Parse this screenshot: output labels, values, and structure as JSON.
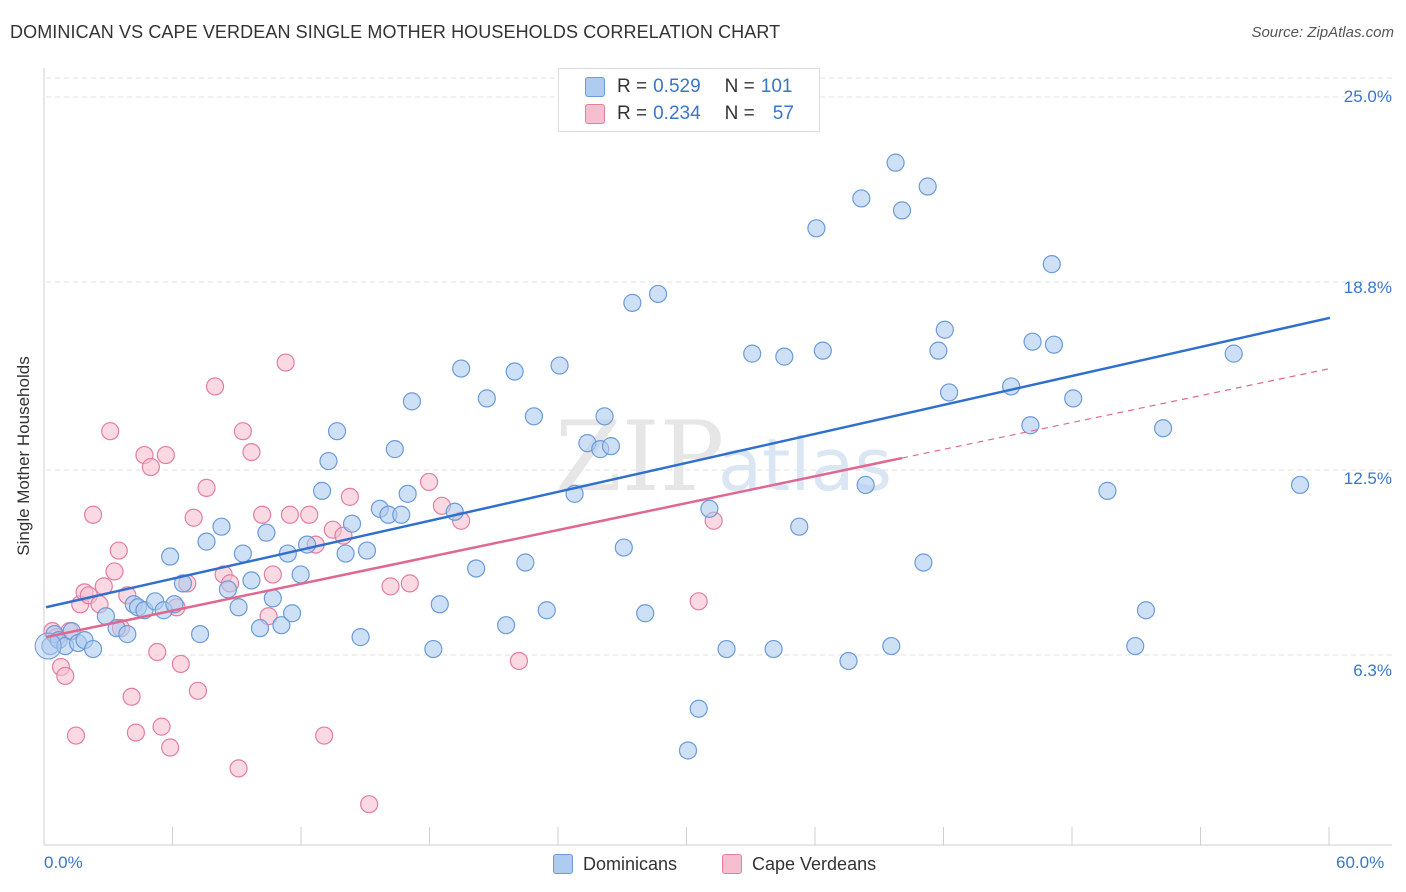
{
  "title": "DOMINICAN VS CAPE VERDEAN SINGLE MOTHER HOUSEHOLDS CORRELATION CHART",
  "source": "Source: ZipAtlas.com",
  "watermark": {
    "zip": "ZIP",
    "atlas": "atlas"
  },
  "legend": {
    "rows": [
      {
        "r_label": "R =",
        "r_value": "0.529",
        "n_label": "N =",
        "n_value": "101",
        "color": "#aecbf0"
      },
      {
        "r_label": "R =",
        "r_value": "0.234",
        "n_label": "N =",
        "n_value": "57",
        "color": "#f6bfd0"
      }
    ]
  },
  "bottom_legend": [
    {
      "label": "Dominicans",
      "color": "#aecbf0"
    },
    {
      "label": "Cape Verdeans",
      "color": "#f6bfd0"
    }
  ],
  "colors": {
    "blue_fill": "#aecbf0",
    "blue_stroke": "#6b9bd8",
    "blue_line": "#2f6fce",
    "pink_fill": "#f6bfd0",
    "pink_stroke": "#e37ea0",
    "pink_line": "#e06890",
    "tick_text": "#3a76c8",
    "grid": "#e2e2e2"
  },
  "chart_data": {
    "type": "scatter",
    "title": "DOMINICAN VS CAPE VERDEAN SINGLE MOTHER HOUSEHOLDS CORRELATION CHART",
    "xlabel": "",
    "ylabel": "Single Mother Households",
    "xlim": [
      0,
      60
    ],
    "ylim": [
      0,
      25.8
    ],
    "x_tick_labels": [
      "0.0%",
      "60.0%"
    ],
    "y_tick_labels": [
      {
        "value": 6.3,
        "label": "6.3%"
      },
      {
        "value": 12.5,
        "label": "12.5%"
      },
      {
        "value": 18.8,
        "label": "18.8%"
      },
      {
        "value": 25.0,
        "label": "25.0%"
      }
    ],
    "grid": true,
    "legend_position": "top-center",
    "series": [
      {
        "name": "Dominicans",
        "trend": {
          "x": [
            0,
            60
          ],
          "y": [
            7.9,
            17.6
          ],
          "style": "solid"
        },
        "points": [
          [
            0.2,
            6.6
          ],
          [
            0.4,
            7.0
          ],
          [
            0.6,
            6.8
          ],
          [
            0.9,
            6.6
          ],
          [
            1.2,
            7.1
          ],
          [
            1.5,
            6.7
          ],
          [
            1.8,
            6.8
          ],
          [
            2.2,
            6.5
          ],
          [
            2.8,
            7.6
          ],
          [
            3.3,
            7.2
          ],
          [
            3.8,
            7.0
          ],
          [
            4.1,
            8.0
          ],
          [
            4.3,
            7.9
          ],
          [
            4.6,
            7.8
          ],
          [
            5.1,
            8.1
          ],
          [
            5.5,
            7.8
          ],
          [
            5.8,
            9.6
          ],
          [
            6.0,
            8.0
          ],
          [
            6.4,
            8.7
          ],
          [
            7.2,
            7.0
          ],
          [
            7.5,
            10.1
          ],
          [
            8.2,
            10.6
          ],
          [
            8.5,
            8.5
          ],
          [
            9.0,
            7.9
          ],
          [
            9.2,
            9.7
          ],
          [
            9.6,
            8.8
          ],
          [
            10.0,
            7.2
          ],
          [
            10.3,
            10.4
          ],
          [
            10.6,
            8.2
          ],
          [
            11.0,
            7.3
          ],
          [
            11.3,
            9.7
          ],
          [
            11.5,
            7.7
          ],
          [
            11.9,
            9.0
          ],
          [
            12.2,
            10.0
          ],
          [
            12.9,
            11.8
          ],
          [
            13.2,
            12.8
          ],
          [
            13.6,
            13.8
          ],
          [
            14.0,
            9.7
          ],
          [
            14.3,
            10.7
          ],
          [
            14.7,
            6.9
          ],
          [
            15.0,
            9.8
          ],
          [
            15.6,
            11.2
          ],
          [
            16.0,
            11.0
          ],
          [
            16.3,
            13.2
          ],
          [
            16.6,
            11.0
          ],
          [
            16.9,
            11.7
          ],
          [
            17.1,
            14.8
          ],
          [
            18.1,
            6.5
          ],
          [
            18.4,
            8.0
          ],
          [
            19.1,
            11.1
          ],
          [
            19.4,
            15.9
          ],
          [
            20.1,
            9.2
          ],
          [
            20.6,
            14.9
          ],
          [
            21.5,
            7.3
          ],
          [
            21.9,
            15.8
          ],
          [
            22.4,
            9.4
          ],
          [
            22.8,
            14.3
          ],
          [
            23.4,
            7.8
          ],
          [
            24.0,
            16.0
          ],
          [
            24.7,
            11.7
          ],
          [
            25.3,
            13.4
          ],
          [
            25.9,
            13.2
          ],
          [
            26.1,
            14.3
          ],
          [
            26.4,
            13.3
          ],
          [
            27.0,
            9.9
          ],
          [
            27.4,
            18.1
          ],
          [
            28.0,
            7.7
          ],
          [
            28.6,
            18.4
          ],
          [
            30.0,
            3.1
          ],
          [
            30.5,
            4.5
          ],
          [
            31.0,
            11.2
          ],
          [
            31.8,
            6.5
          ],
          [
            33.0,
            16.4
          ],
          [
            34.0,
            6.5
          ],
          [
            34.5,
            16.3
          ],
          [
            35.2,
            10.6
          ],
          [
            36.0,
            20.6
          ],
          [
            36.3,
            16.5
          ],
          [
            37.5,
            6.1
          ],
          [
            38.1,
            21.6
          ],
          [
            38.3,
            12.0
          ],
          [
            39.5,
            6.6
          ],
          [
            39.7,
            22.8
          ],
          [
            40.0,
            21.2
          ],
          [
            41.0,
            9.4
          ],
          [
            41.2,
            22.0
          ],
          [
            41.7,
            16.5
          ],
          [
            42.0,
            17.2
          ],
          [
            42.2,
            15.1
          ],
          [
            45.1,
            15.3
          ],
          [
            46.0,
            14.0
          ],
          [
            46.1,
            16.8
          ],
          [
            47.0,
            19.4
          ],
          [
            47.1,
            16.7
          ],
          [
            48.0,
            14.9
          ],
          [
            49.6,
            11.8
          ],
          [
            50.9,
            6.6
          ],
          [
            51.4,
            7.8
          ],
          [
            52.2,
            13.9
          ],
          [
            55.5,
            16.4
          ],
          [
            58.6,
            12.0
          ]
        ]
      },
      {
        "name": "Cape Verdeans",
        "trend": {
          "x": [
            0,
            40
          ],
          "y": [
            6.9,
            12.9
          ],
          "style": "solid",
          "extension_x": [
            40,
            60
          ],
          "extension_y": [
            12.9,
            15.9
          ],
          "extension_style": "dashed"
        },
        "points": [
          [
            0.3,
            7.1
          ],
          [
            0.5,
            6.9
          ],
          [
            0.7,
            5.9
          ],
          [
            0.9,
            5.6
          ],
          [
            1.1,
            7.1
          ],
          [
            1.4,
            3.6
          ],
          [
            1.6,
            8.0
          ],
          [
            1.8,
            8.4
          ],
          [
            2.0,
            8.3
          ],
          [
            2.2,
            11.0
          ],
          [
            2.5,
            8.0
          ],
          [
            2.7,
            8.6
          ],
          [
            3.0,
            13.8
          ],
          [
            3.2,
            9.1
          ],
          [
            3.4,
            9.8
          ],
          [
            3.5,
            7.2
          ],
          [
            3.8,
            8.3
          ],
          [
            4.0,
            4.9
          ],
          [
            4.2,
            3.7
          ],
          [
            4.6,
            13.0
          ],
          [
            4.9,
            12.6
          ],
          [
            5.2,
            6.4
          ],
          [
            5.4,
            3.9
          ],
          [
            5.6,
            13.0
          ],
          [
            5.8,
            3.2
          ],
          [
            6.1,
            7.9
          ],
          [
            6.3,
            6.0
          ],
          [
            6.6,
            8.7
          ],
          [
            6.9,
            10.9
          ],
          [
            7.1,
            5.1
          ],
          [
            7.5,
            11.9
          ],
          [
            7.9,
            15.3
          ],
          [
            8.3,
            9.0
          ],
          [
            8.6,
            8.7
          ],
          [
            9.0,
            2.5
          ],
          [
            9.2,
            13.8
          ],
          [
            9.6,
            13.1
          ],
          [
            10.1,
            11.0
          ],
          [
            10.4,
            7.6
          ],
          [
            10.6,
            9.0
          ],
          [
            11.2,
            16.1
          ],
          [
            11.4,
            11.0
          ],
          [
            12.3,
            11.0
          ],
          [
            12.6,
            10.0
          ],
          [
            13.0,
            3.6
          ],
          [
            13.4,
            10.5
          ],
          [
            13.9,
            10.3
          ],
          [
            14.2,
            11.6
          ],
          [
            15.1,
            1.3
          ],
          [
            16.1,
            8.6
          ],
          [
            17.0,
            8.7
          ],
          [
            17.9,
            12.1
          ],
          [
            18.5,
            11.3
          ],
          [
            19.4,
            10.8
          ],
          [
            22.1,
            6.1
          ],
          [
            30.5,
            8.1
          ],
          [
            31.2,
            10.8
          ]
        ]
      }
    ]
  },
  "axis": {
    "ylabel": "Single Mother Households",
    "x_left": "0.0%",
    "x_right": "60.0%",
    "y_ticks": [
      "6.3%",
      "12.5%",
      "18.8%",
      "25.0%"
    ]
  }
}
